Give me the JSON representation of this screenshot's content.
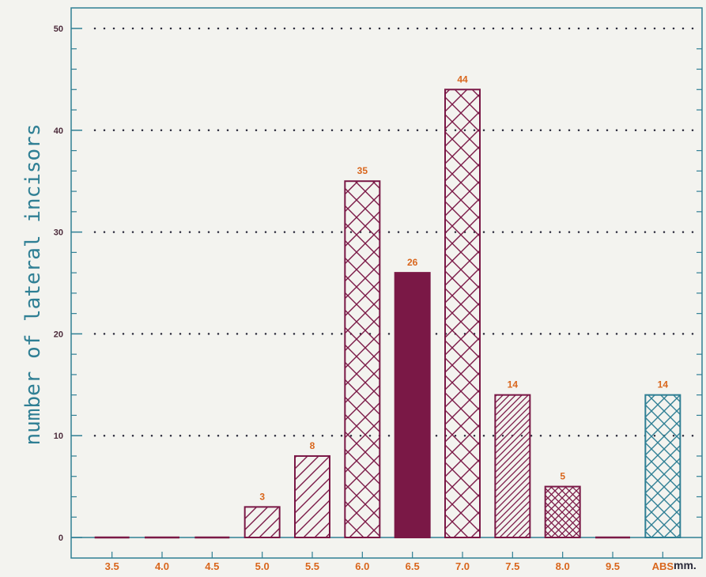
{
  "chart_data": {
    "type": "bar",
    "title": "",
    "ylabel": "number of lateral incisors",
    "xlabel": "",
    "x_unit": "mm.",
    "categories": [
      "3.5",
      "4.0",
      "4.5",
      "5.0",
      "5.5",
      "6.0",
      "6.5",
      "7.0",
      "7.5",
      "8.0",
      "9.5",
      "ABS"
    ],
    "values": [
      0,
      0,
      0,
      3,
      8,
      35,
      26,
      44,
      14,
      5,
      0,
      14
    ],
    "data_labels": [
      "",
      "",
      "",
      "3",
      "8",
      "35",
      "26",
      "44",
      "14",
      "5",
      "",
      "14"
    ],
    "bar_styles": [
      "none",
      "none",
      "none",
      "diagonal",
      "diagonal",
      "crosshatch",
      "solid",
      "crosshatch",
      "diagonal-dense",
      "crosshatch-dense",
      "none",
      "crosshatch-teal"
    ],
    "ylim": [
      0,
      50
    ],
    "yticks": [
      0,
      10,
      20,
      30,
      40,
      50
    ],
    "ytick_labels": [
      "0",
      "10",
      "20",
      "30",
      "40",
      "50"
    ],
    "grid": "dotted-horizontal",
    "colors": {
      "bar": "#7a1846",
      "teal": "#2f7f94",
      "axis": "#2f7f94",
      "label": "#d9661c",
      "grid": "#2a2a3a"
    }
  }
}
